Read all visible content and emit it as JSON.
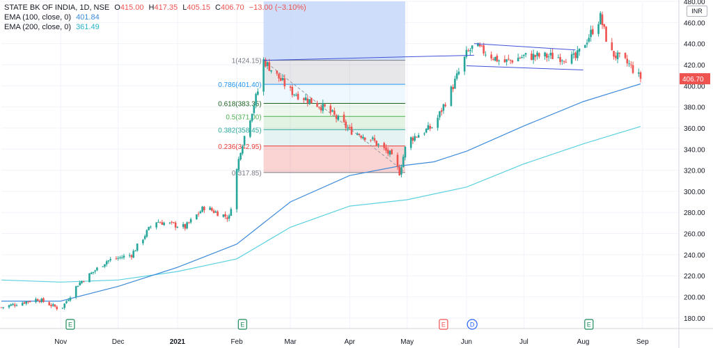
{
  "legend": {
    "title": "STATE BK OF INDIA, 1D, NSE",
    "open_label": "O",
    "open": "415.00",
    "high_label": "H",
    "high": "417.35",
    "low_label": "L",
    "low": "405.15",
    "close_label": "C",
    "close": "406.70",
    "change": "−13.00 (−3.10%)",
    "ema100_label": "EMA (100, close, 0)",
    "ema100_value": "401.84",
    "ema200_label": "EMA (200, close, 0)",
    "ema200_value": "361.49"
  },
  "currency": "INR",
  "colors": {
    "up": "#26a69a",
    "down": "#ef5350",
    "ema100": "#3d8bd9",
    "ema200": "#5bd1e0",
    "trendline": "#3f51d8",
    "fib_box": "#c9d9f8"
  },
  "chart_data": {
    "type": "candlestick",
    "title": "STATE BK OF INDIA, 1D, NSE",
    "ylim": [
      170,
      480
    ],
    "y_ticks": [
      180,
      200,
      220,
      240,
      260,
      280,
      300,
      320,
      340,
      360,
      380,
      400,
      420,
      440,
      460,
      480
    ],
    "x_ticks": [
      {
        "label": "Nov",
        "date": "2020-11-01"
      },
      {
        "label": "Dec",
        "date": "2020-12-01"
      },
      {
        "label": "2021",
        "date": "2021-01-01"
      },
      {
        "label": "Feb",
        "date": "2021-02-01"
      },
      {
        "label": "Mar",
        "date": "2021-03-01"
      },
      {
        "label": "Apr",
        "date": "2021-04-01"
      },
      {
        "label": "May",
        "date": "2021-05-01"
      },
      {
        "label": "Jun",
        "date": "2021-06-01"
      },
      {
        "label": "Jul",
        "date": "2021-07-01"
      },
      {
        "label": "Aug",
        "date": "2021-08-01"
      },
      {
        "label": "Sep",
        "date": "2021-09-01"
      }
    ],
    "x_range": [
      "2020-10-01",
      "2021-09-20"
    ],
    "last_price": "406.70",
    "ema100_last": "401.84",
    "ema200_last": "361.49",
    "price_path": [
      [
        "2020-10-01",
        190
      ],
      [
        "2020-10-20",
        198
      ],
      [
        "2020-11-01",
        188
      ],
      [
        "2020-11-10",
        212
      ],
      [
        "2020-11-25",
        234
      ],
      [
        "2020-12-08",
        240
      ],
      [
        "2020-12-20",
        272
      ],
      [
        "2021-01-05",
        266
      ],
      [
        "2021-01-15",
        285
      ],
      [
        "2021-01-28",
        275
      ],
      [
        "2021-02-01",
        320
      ],
      [
        "2021-02-03",
        340
      ],
      [
        "2021-02-12",
        395
      ],
      [
        "2021-02-15",
        424
      ],
      [
        "2021-03-01",
        395
      ],
      [
        "2021-03-20",
        378
      ],
      [
        "2021-04-01",
        358
      ],
      [
        "2021-04-12",
        350
      ],
      [
        "2021-04-22",
        335
      ],
      [
        "2021-04-27",
        318
      ],
      [
        "2021-05-01",
        348
      ],
      [
        "2021-05-15",
        362
      ],
      [
        "2021-05-25",
        400
      ],
      [
        "2021-06-01",
        430
      ],
      [
        "2021-06-05",
        438
      ],
      [
        "2021-06-20",
        422
      ],
      [
        "2021-07-01",
        428
      ],
      [
        "2021-07-15",
        428
      ],
      [
        "2021-07-28",
        426
      ],
      [
        "2021-08-05",
        450
      ],
      [
        "2021-08-10",
        465
      ],
      [
        "2021-08-15",
        432
      ],
      [
        "2021-08-25",
        420
      ],
      [
        "2021-08-31",
        406.7
      ]
    ],
    "ema100": [
      [
        "2020-10-01",
        196
      ],
      [
        "2020-11-01",
        196
      ],
      [
        "2020-12-01",
        210
      ],
      [
        "2021-01-01",
        228
      ],
      [
        "2021-02-01",
        250
      ],
      [
        "2021-03-01",
        290
      ],
      [
        "2021-04-01",
        315
      ],
      [
        "2021-04-27",
        324
      ],
      [
        "2021-05-15",
        328
      ],
      [
        "2021-06-01",
        338
      ],
      [
        "2021-07-01",
        362
      ],
      [
        "2021-08-01",
        385
      ],
      [
        "2021-08-31",
        401.84
      ]
    ],
    "ema200": [
      [
        "2020-10-01",
        216
      ],
      [
        "2020-11-01",
        214
      ],
      [
        "2020-12-01",
        216
      ],
      [
        "2021-01-01",
        224
      ],
      [
        "2021-02-01",
        236
      ],
      [
        "2021-03-01",
        266
      ],
      [
        "2021-04-01",
        286
      ],
      [
        "2021-05-01",
        292
      ],
      [
        "2021-06-01",
        304
      ],
      [
        "2021-07-01",
        326
      ],
      [
        "2021-08-01",
        345
      ],
      [
        "2021-08-31",
        361.49
      ]
    ],
    "fibonacci": {
      "start_date": "2021-02-15",
      "end_date": "2021-04-30",
      "levels": [
        {
          "label": "1(424.15)",
          "ratio": 1,
          "price": 424.15,
          "color": "#787b86",
          "fill": "rgba(120,123,134,0.18)"
        },
        {
          "label": "0.786(401.40)",
          "ratio": 0.786,
          "price": 401.4,
          "color": "#2196f3",
          "fill": "rgba(33,150,243,0.07)"
        },
        {
          "label": "0.618(383.35)",
          "ratio": 0.618,
          "price": 383.35,
          "color": "#1b5e20",
          "fill": "rgba(76,175,80,0.10)"
        },
        {
          "label": "0.5(371.00)",
          "ratio": 0.5,
          "price": 371.0,
          "color": "#4caf50",
          "fill": "rgba(76,175,80,0.16)"
        },
        {
          "label": "0.382(358.45)",
          "ratio": 0.382,
          "price": 358.45,
          "color": "#26a69a",
          "fill": "rgba(38,166,154,0.12)"
        },
        {
          "label": "0.236(342.95)",
          "ratio": 0.236,
          "price": 342.95,
          "color": "#e53935",
          "fill": "rgba(229,57,53,0.22)"
        },
        {
          "label": "0(317.85)",
          "ratio": 0,
          "price": 317.85,
          "color": "#787b86",
          "fill": null
        }
      ]
    },
    "trendlines": [
      {
        "from": [
          "2021-02-15",
          424.15
        ],
        "to": [
          "2021-06-05",
          429
        ]
      },
      {
        "from": [
          "2021-06-05",
          440
        ],
        "to": [
          "2021-07-28",
          434
        ]
      },
      {
        "from": [
          "2021-06-01",
          419
        ],
        "to": [
          "2021-08-01",
          415
        ]
      }
    ],
    "events": [
      {
        "date": "2020-11-06",
        "label": "E",
        "kind": "earnings"
      },
      {
        "date": "2021-02-04",
        "label": "E",
        "kind": "earnings"
      },
      {
        "date": "2021-05-20",
        "label": "E",
        "kind": "earnings-upcoming"
      },
      {
        "date": "2021-06-04",
        "label": "D",
        "kind": "dividend"
      },
      {
        "date": "2021-08-04",
        "label": "E",
        "kind": "earnings"
      }
    ]
  }
}
